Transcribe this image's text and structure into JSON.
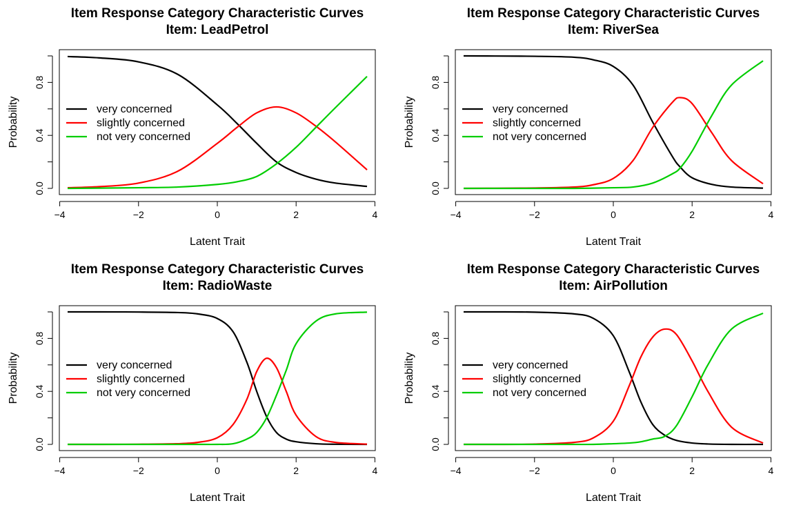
{
  "chart_data": [
    {
      "type": "line",
      "title": "Item Response Category Characteristic Curves",
      "subtitle": "Item: LeadPetrol",
      "xlabel": "Latent Trait",
      "ylabel": "Probability",
      "xlim": [
        -3.8,
        3.8
      ],
      "ylim": [
        0,
        1
      ],
      "xticks": [
        "-4",
        "-2",
        "0",
        "2",
        "4"
      ],
      "yticks": [
        "0.0",
        "0.4",
        "0.8"
      ],
      "legend_position": "left",
      "x": [
        -3.8,
        -3,
        -2,
        -1,
        0,
        0.5,
        1,
        1.5,
        2,
        2.5,
        3,
        3.8
      ],
      "series": [
        {
          "name": "very concerned",
          "color": "#000000",
          "values": [
            0.995,
            0.985,
            0.955,
            0.86,
            0.63,
            0.49,
            0.34,
            0.2,
            0.12,
            0.07,
            0.04,
            0.015
          ]
        },
        {
          "name": "slightly concerned",
          "color": "#ff0000",
          "values": [
            0.005,
            0.013,
            0.04,
            0.13,
            0.34,
            0.46,
            0.57,
            0.615,
            0.57,
            0.47,
            0.35,
            0.14
          ]
        },
        {
          "name": "not very concerned",
          "color": "#00cd00",
          "values": [
            0.0,
            0.002,
            0.005,
            0.01,
            0.03,
            0.05,
            0.09,
            0.185,
            0.31,
            0.46,
            0.61,
            0.845
          ]
        }
      ]
    },
    {
      "type": "line",
      "title": "Item Response Category Characteristic Curves",
      "subtitle": "Item: RiverSea",
      "xlabel": "Latent Trait",
      "ylabel": "Probability",
      "xlim": [
        -3.8,
        3.8
      ],
      "ylim": [
        0,
        1
      ],
      "xticks": [
        "-4",
        "-2",
        "0",
        "2",
        "4"
      ],
      "yticks": [
        "0.0",
        "0.4",
        "0.8"
      ],
      "legend_position": "left",
      "x": [
        -3.8,
        -3,
        -2,
        -1,
        -0.5,
        0,
        0.5,
        1,
        1.5,
        1.7,
        2,
        2.5,
        3,
        3.8
      ],
      "series": [
        {
          "name": "very concerned",
          "color": "#000000",
          "values": [
            1.0,
            0.999,
            0.997,
            0.99,
            0.97,
            0.92,
            0.78,
            0.5,
            0.24,
            0.16,
            0.08,
            0.03,
            0.01,
            0.002
          ]
        },
        {
          "name": "slightly concerned",
          "color": "#ff0000",
          "values": [
            0.0,
            0.001,
            0.003,
            0.01,
            0.028,
            0.075,
            0.21,
            0.46,
            0.65,
            0.685,
            0.64,
            0.42,
            0.21,
            0.035
          ]
        },
        {
          "name": "not very concerned",
          "color": "#00cd00",
          "values": [
            0.0,
            0.0,
            0.0,
            0.0,
            0.002,
            0.005,
            0.01,
            0.04,
            0.11,
            0.155,
            0.28,
            0.55,
            0.78,
            0.963
          ]
        }
      ]
    },
    {
      "type": "line",
      "title": "Item Response Category Characteristic Curves",
      "subtitle": "Item: RadioWaste",
      "xlabel": "Latent Trait",
      "ylabel": "Probability",
      "xlim": [
        -3.8,
        3.8
      ],
      "ylim": [
        0,
        1
      ],
      "xticks": [
        "-4",
        "-2",
        "0",
        "2",
        "4"
      ],
      "yticks": [
        "0.0",
        "0.4",
        "0.8"
      ],
      "legend_position": "left",
      "x": [
        -3.8,
        -3,
        -2,
        -1,
        -0.5,
        0,
        0.4,
        0.75,
        1,
        1.25,
        1.5,
        1.75,
        2,
        2.5,
        3,
        3.8
      ],
      "series": [
        {
          "name": "very concerned",
          "color": "#000000",
          "values": [
            1.0,
            1.0,
            0.999,
            0.995,
            0.985,
            0.95,
            0.85,
            0.62,
            0.4,
            0.21,
            0.09,
            0.04,
            0.02,
            0.005,
            0.001,
            0.0
          ]
        },
        {
          "name": "slightly concerned",
          "color": "#ff0000",
          "values": [
            0.0,
            0.0,
            0.001,
            0.005,
            0.015,
            0.05,
            0.15,
            0.34,
            0.55,
            0.65,
            0.58,
            0.4,
            0.22,
            0.06,
            0.015,
            0.002
          ]
        },
        {
          "name": "not very concerned",
          "color": "#00cd00",
          "values": [
            0.0,
            0.0,
            0.0,
            0.0,
            0.0,
            0.0,
            0.005,
            0.04,
            0.09,
            0.2,
            0.37,
            0.56,
            0.76,
            0.93,
            0.985,
            0.998
          ]
        }
      ]
    },
    {
      "type": "line",
      "title": "Item Response Category Characteristic Curves",
      "subtitle": "Item: AirPollution",
      "xlabel": "Latent Trait",
      "ylabel": "Probability",
      "xlim": [
        -3.8,
        3.8
      ],
      "ylim": [
        0,
        1
      ],
      "xticks": [
        "-4",
        "-2",
        "0",
        "2",
        "4"
      ],
      "yticks": [
        "0.0",
        "0.4",
        "0.8"
      ],
      "legend_position": "left",
      "x": [
        -3.8,
        -3,
        -2,
        -1,
        -0.5,
        0,
        0.4,
        0.7,
        1,
        1.3,
        1.6,
        2,
        2.4,
        3,
        3.8
      ],
      "series": [
        {
          "name": "very concerned",
          "color": "#000000",
          "values": [
            1.0,
            1.0,
            0.998,
            0.985,
            0.95,
            0.82,
            0.55,
            0.32,
            0.15,
            0.07,
            0.03,
            0.01,
            0.003,
            0.0,
            0.0
          ]
        },
        {
          "name": "slightly concerned",
          "color": "#ff0000",
          "values": [
            0.0,
            0.0,
            0.002,
            0.015,
            0.05,
            0.175,
            0.44,
            0.66,
            0.81,
            0.87,
            0.83,
            0.63,
            0.4,
            0.13,
            0.01
          ]
        },
        {
          "name": "not very concerned",
          "color": "#00cd00",
          "values": [
            0.0,
            0.0,
            0.0,
            0.0,
            0.0,
            0.005,
            0.01,
            0.02,
            0.04,
            0.06,
            0.14,
            0.36,
            0.6,
            0.87,
            0.99
          ]
        }
      ]
    }
  ]
}
